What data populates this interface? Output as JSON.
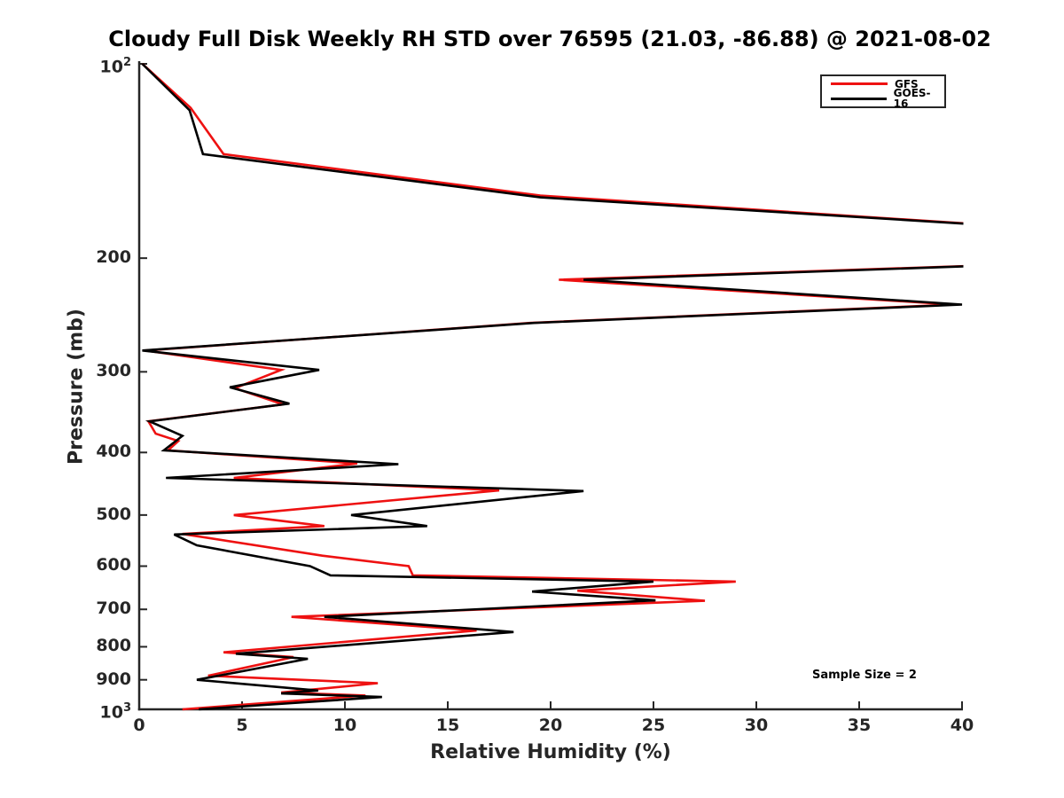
{
  "title": "Cloudy Full Disk Weekly RH STD over 76595 (21.03, -86.88) @ 2021-08-02",
  "annotation": "Sample Size = 2",
  "axis_color": "#262626",
  "chart_data": {
    "type": "line",
    "title": "Cloudy Full Disk Weekly RH STD over 76595 (21.03, -86.88) @ 2021-08-02",
    "xlabel": "Relative Humidity (%)",
    "ylabel": "Pressure (mb)",
    "xlim": [
      0,
      40
    ],
    "ylim_pressure": [
      100,
      1000
    ],
    "y_scale": "log-inverted",
    "grid": false,
    "legend_position": "northeast-inset",
    "x_ticks": [
      0,
      5,
      10,
      15,
      20,
      25,
      30,
      35,
      40
    ],
    "y_ticks": [
      {
        "value": 100,
        "label": "10^2"
      },
      {
        "value": 200,
        "label": "200"
      },
      {
        "value": 300,
        "label": "300"
      },
      {
        "value": 400,
        "label": "400"
      },
      {
        "value": 500,
        "label": "500"
      },
      {
        "value": 600,
        "label": "600"
      },
      {
        "value": 700,
        "label": "700"
      },
      {
        "value": 800,
        "label": "800"
      },
      {
        "value": 900,
        "label": "900"
      },
      {
        "value": 1000,
        "label": "10^3"
      }
    ],
    "series": [
      {
        "name": "GFS",
        "color": "#ee1111",
        "points_pressure_rh": [
          [
            100,
            0.15
          ],
          [
            117,
            2.5
          ],
          [
            138,
            4.1
          ],
          [
            160,
            19.5
          ],
          [
            180,
            44
          ],
          [
            205,
            41.5
          ],
          [
            216,
            20.4
          ],
          [
            236,
            39.6
          ],
          [
            252,
            19.0
          ],
          [
            278,
            0.3
          ],
          [
            298,
            6.9
          ],
          [
            318,
            4.65
          ],
          [
            337,
            7.0
          ],
          [
            358,
            0.45
          ],
          [
            374,
            0.8
          ],
          [
            384,
            1.9
          ],
          [
            397,
            1.4
          ],
          [
            416,
            10.6
          ],
          [
            438,
            4.6
          ],
          [
            458,
            17.5
          ],
          [
            500,
            4.6
          ],
          [
            520,
            9.0
          ],
          [
            535,
            2.1
          ],
          [
            578,
            8.9
          ],
          [
            600,
            13.1
          ],
          [
            620,
            13.3
          ],
          [
            634,
            29.0
          ],
          [
            655,
            21.3
          ],
          [
            679,
            27.5
          ],
          [
            719,
            7.4
          ],
          [
            755,
            16.4
          ],
          [
            816,
            4.1
          ],
          [
            830,
            7.5
          ],
          [
            887,
            3.35
          ],
          [
            911,
            11.6
          ],
          [
            942,
            6.9
          ],
          [
            952,
            11.0
          ],
          [
            1000,
            2.1
          ]
        ]
      },
      {
        "name": "GOES-16",
        "color": "#000000",
        "points_pressure_rh": [
          [
            100,
            0.15
          ],
          [
            118,
            2.45
          ],
          [
            138,
            3.1
          ],
          [
            161,
            19.5
          ],
          [
            180,
            44
          ],
          [
            205,
            41.8
          ],
          [
            216,
            21.6
          ],
          [
            236,
            40.0
          ],
          [
            252,
            19.2
          ],
          [
            278,
            0.15
          ],
          [
            298,
            8.75
          ],
          [
            317,
            4.4
          ],
          [
            336,
            7.3
          ],
          [
            358,
            0.5
          ],
          [
            377,
            2.1
          ],
          [
            397,
            1.2
          ],
          [
            417,
            12.6
          ],
          [
            438,
            1.3
          ],
          [
            459,
            21.6
          ],
          [
            500,
            10.3
          ],
          [
            520,
            14.0
          ],
          [
            536,
            1.7
          ],
          [
            557,
            2.8
          ],
          [
            600,
            8.3
          ],
          [
            620,
            9.3
          ],
          [
            634,
            25.0
          ],
          [
            657,
            19.1
          ],
          [
            678,
            25.1
          ],
          [
            719,
            9.0
          ],
          [
            759,
            18.2
          ],
          [
            820,
            4.7
          ],
          [
            835,
            8.2
          ],
          [
            900,
            2.8
          ],
          [
            935,
            8.7
          ],
          [
            945,
            6.9
          ],
          [
            957,
            11.8
          ],
          [
            1000,
            2.9
          ]
        ]
      }
    ]
  }
}
